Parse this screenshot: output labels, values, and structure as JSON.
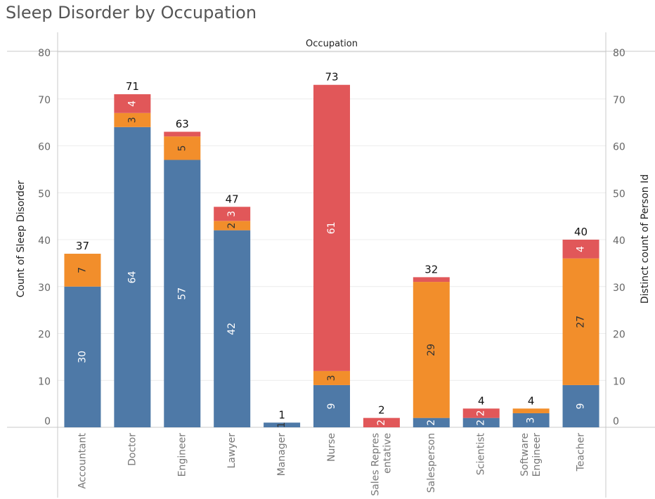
{
  "chart_data": {
    "type": "bar",
    "stacked": true,
    "title": "Sleep Disorder by Occupation",
    "header": "Occupation",
    "ylabel": "Count of Sleep Disorder",
    "ylabel_right": "Distinct count of Person Id",
    "ylim": [
      0,
      80
    ],
    "yticks": [
      0,
      10,
      20,
      30,
      40,
      50,
      60,
      70,
      80
    ],
    "categories": [
      "Accountant",
      "Doctor",
      "Engineer",
      "Lawyer",
      "Manager",
      "Nurse",
      "Sales Representative",
      "Salesperson",
      "Scientist",
      "Software Engineer",
      "Teacher"
    ],
    "category_lines": [
      [
        "Accountant"
      ],
      [
        "Doctor"
      ],
      [
        "Engineer"
      ],
      [
        "Lawyer"
      ],
      [
        "Manager"
      ],
      [
        "Nurse"
      ],
      [
        "Sales Repres",
        "entative"
      ],
      [
        "Salesperson"
      ],
      [
        "Scientist"
      ],
      [
        "Software",
        "Engineer"
      ],
      [
        "Teacher"
      ]
    ],
    "series": [
      {
        "color": "#4e79a7",
        "values": [
          30,
          64,
          57,
          42,
          1,
          9,
          0,
          2,
          2,
          3,
          9
        ],
        "labels": [
          "30",
          "64",
          "57",
          "42",
          "1",
          "9",
          "",
          "2",
          "2",
          "3",
          "9"
        ],
        "label_colors": [
          "#ffffff",
          "#ffffff",
          "#ffffff",
          "#ffffff",
          "#333333",
          "#ffffff",
          "",
          "#ffffff",
          "#ffffff",
          "#ffffff",
          "#ffffff"
        ]
      },
      {
        "color": "#f28e2b",
        "values": [
          7,
          3,
          5,
          2,
          0,
          3,
          0,
          29,
          0,
          1,
          27
        ],
        "labels": [
          "7",
          "3",
          "5",
          "2",
          "",
          "3",
          "",
          "29",
          "",
          "",
          "27"
        ],
        "label_colors": [
          "#333333",
          "#333333",
          "#333333",
          "#333333",
          "",
          "#333333",
          "",
          "#333333",
          "",
          "",
          "#333333"
        ]
      },
      {
        "color": "#e15759",
        "values": [
          0,
          4,
          1,
          3,
          0,
          61,
          2,
          1,
          2,
          0,
          4
        ],
        "labels": [
          "",
          "4",
          "",
          "3",
          "",
          "61",
          "2",
          "",
          "2",
          "",
          "4"
        ],
        "label_colors": [
          "",
          "#ffffff",
          "",
          "#ffffff",
          "",
          "#ffffff",
          "#ffffff",
          "",
          "#ffffff",
          "",
          "#ffffff"
        ]
      }
    ],
    "totals": [
      37,
      71,
      63,
      47,
      1,
      73,
      2,
      32,
      4,
      4,
      40
    ],
    "grid": true,
    "legend": "none"
  }
}
